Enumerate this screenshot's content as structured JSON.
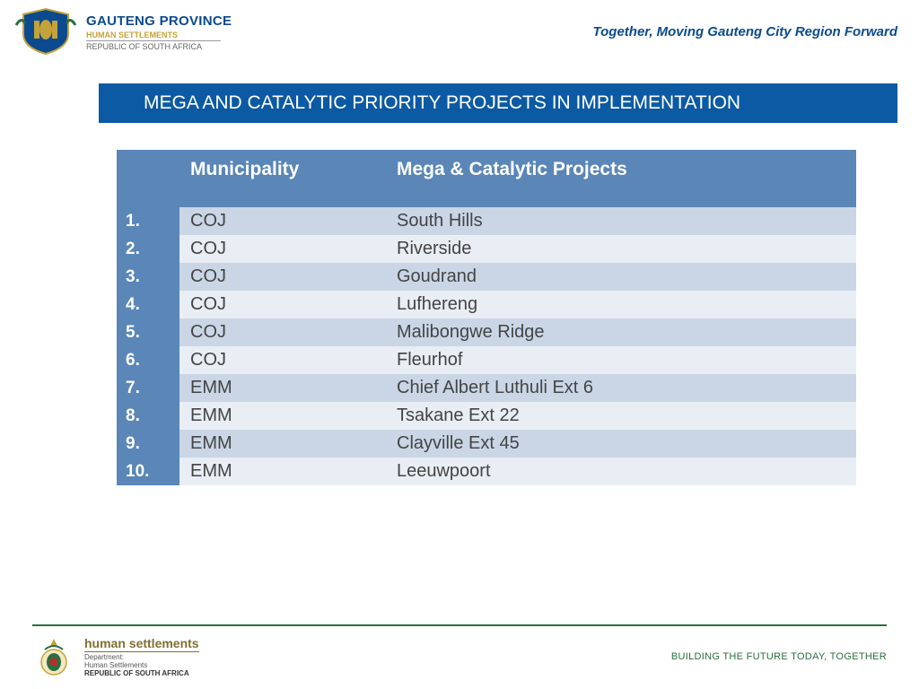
{
  "header": {
    "province_title": "GAUTENG PROVINCE",
    "province_sub1": "HUMAN SETTLEMENTS",
    "province_sub2": "REPUBLIC OF SOUTH AFRICA",
    "tagline": "Together, Moving Gauteng City Region Forward"
  },
  "title_bar": "MEGA AND CATALYTIC PRIORITY PROJECTS IN IMPLEMENTATION",
  "table": {
    "columns": [
      "",
      "Municipality",
      "Mega & Catalytic Projects"
    ],
    "rows": [
      [
        "1.",
        "COJ",
        "South Hills"
      ],
      [
        "2.",
        "COJ",
        "Riverside"
      ],
      [
        "3.",
        "COJ",
        "Goudrand"
      ],
      [
        "4.",
        "COJ",
        "Lufhereng"
      ],
      [
        "5.",
        "COJ",
        "Malibongwe Ridge"
      ],
      [
        "6.",
        "COJ",
        "Fleurhof"
      ],
      [
        "7.",
        "EMM",
        "Chief Albert Luthuli Ext 6"
      ],
      [
        "8.",
        "EMM",
        "Tsakane Ext 22"
      ],
      [
        "9.",
        "EMM",
        "Clayville Ext 45"
      ],
      [
        "10.",
        "EMM",
        "Leeuwpoort"
      ]
    ],
    "header_bg": "#5a86b8",
    "numcol_bg": "#5a86b8",
    "row_odd_bg": "#cad6e6",
    "row_even_bg": "#e9edf4",
    "header_fontsize": 21,
    "cell_fontsize": 20
  },
  "footer": {
    "t1": "human settlements",
    "t2": "Department:",
    "t3": "Human Settlements",
    "t4": "REPUBLIC OF SOUTH AFRICA",
    "right": "BUILDING THE FUTURE TODAY, TOGETHER"
  },
  "colors": {
    "title_bar_bg": "#0b5aa3",
    "province_title": "#0b4a8f",
    "footer_line": "#2a6e3f"
  }
}
